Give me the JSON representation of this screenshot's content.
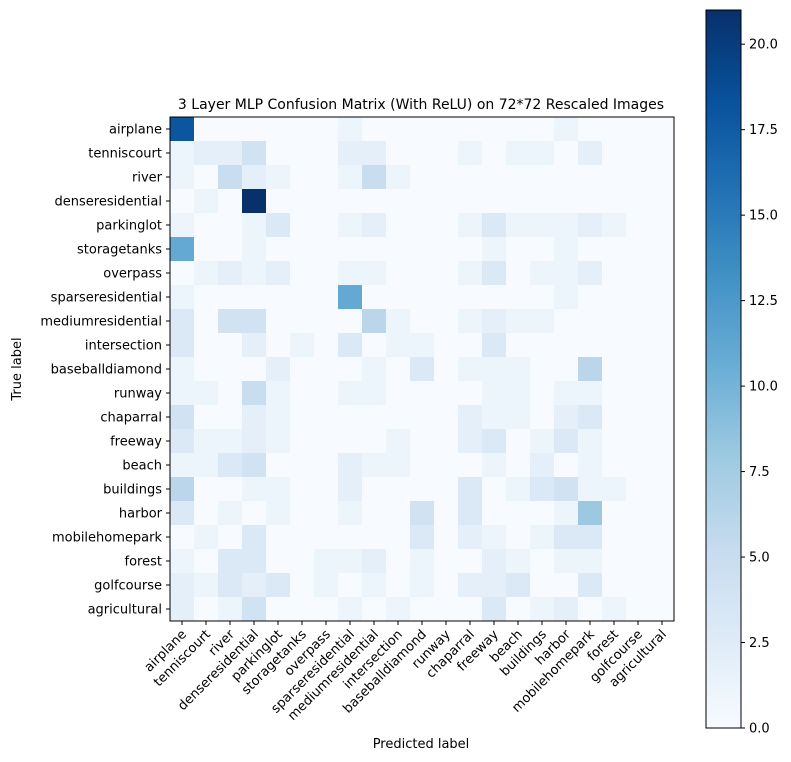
{
  "chart_data": {
    "type": "heatmap",
    "title": "3 Layer MLP Confusion Matrix (With ReLU) on 72*72 Rescaled Images",
    "xlabel": "Predicted label",
    "ylabel": "True label",
    "row_labels": [
      "airplane",
      "tenniscourt",
      "river",
      "denseresidential",
      "parkinglot",
      "storagetanks",
      "overpass",
      "sparseresidential",
      "mediumresidential",
      "intersection",
      "baseballdiamond",
      "runway",
      "chaparral",
      "freeway",
      "beach",
      "buildings",
      "harbor",
      "mobilehomepark",
      "forest",
      "golfcourse",
      "agricultural"
    ],
    "col_labels": [
      "airplane",
      "tenniscourt",
      "river",
      "denseresidential",
      "parkinglot",
      "storagetanks",
      "overpass",
      "sparseresidential",
      "mediumresidential",
      "intersection",
      "baseballdiamond",
      "runway",
      "chaparral",
      "freeway",
      "beach",
      "buildings",
      "harbor",
      "mobilehomepark",
      "forest",
      "golfcourse",
      "agricultural"
    ],
    "values": [
      [
        18,
        0,
        0,
        0,
        0,
        0,
        0,
        1,
        0,
        0,
        0,
        0,
        0,
        0,
        0,
        0,
        1,
        0,
        0,
        0,
        0
      ],
      [
        1,
        2,
        2,
        4,
        0,
        0,
        0,
        2,
        2,
        0,
        0,
        0,
        1,
        0,
        1,
        1,
        0,
        2,
        0,
        0,
        0
      ],
      [
        1,
        0,
        5,
        2,
        1,
        0,
        0,
        1,
        5,
        1,
        0,
        0,
        0,
        0,
        0,
        0,
        0,
        0,
        0,
        0,
        0
      ],
      [
        0,
        1,
        0,
        21,
        0,
        0,
        0,
        0,
        0,
        0,
        0,
        0,
        0,
        0,
        0,
        0,
        0,
        0,
        0,
        0,
        0
      ],
      [
        1,
        0,
        0,
        1,
        3,
        0,
        0,
        1,
        2,
        0,
        0,
        0,
        1,
        3,
        1,
        1,
        1,
        2,
        1,
        0,
        0
      ],
      [
        11,
        0,
        0,
        1,
        0,
        0,
        0,
        0,
        0,
        0,
        0,
        0,
        0,
        1,
        0,
        0,
        1,
        0,
        0,
        0,
        0
      ],
      [
        0,
        1,
        2,
        1,
        2,
        0,
        0,
        1,
        1,
        0,
        0,
        0,
        1,
        3,
        0,
        1,
        1,
        2,
        0,
        0,
        0
      ],
      [
        1,
        0,
        0,
        0,
        0,
        0,
        0,
        11,
        0,
        0,
        0,
        0,
        0,
        0,
        0,
        0,
        1,
        0,
        0,
        0,
        0
      ],
      [
        3,
        0,
        4,
        4,
        0,
        0,
        0,
        0,
        6,
        1,
        0,
        0,
        1,
        2,
        1,
        1,
        0,
        0,
        0,
        0,
        0
      ],
      [
        3,
        0,
        0,
        2,
        0,
        1,
        0,
        3,
        0,
        1,
        1,
        0,
        0,
        3,
        0,
        0,
        0,
        0,
        0,
        0,
        0
      ],
      [
        1,
        0,
        0,
        0,
        2,
        0,
        0,
        0,
        1,
        0,
        3,
        0,
        1,
        1,
        1,
        0,
        0,
        6,
        0,
        0,
        0
      ],
      [
        1,
        1,
        0,
        5,
        1,
        0,
        0,
        1,
        1,
        0,
        0,
        0,
        0,
        1,
        1,
        0,
        1,
        1,
        0,
        0,
        0
      ],
      [
        4,
        0,
        0,
        2,
        1,
        0,
        0,
        0,
        0,
        0,
        0,
        0,
        2,
        1,
        1,
        0,
        2,
        3,
        0,
        0,
        0
      ],
      [
        3,
        1,
        1,
        2,
        1,
        0,
        0,
        0,
        0,
        1,
        0,
        0,
        2,
        3,
        0,
        1,
        3,
        1,
        0,
        0,
        0
      ],
      [
        1,
        1,
        3,
        4,
        0,
        0,
        0,
        2,
        1,
        1,
        0,
        0,
        0,
        1,
        0,
        2,
        0,
        1,
        0,
        0,
        0
      ],
      [
        6,
        0,
        0,
        1,
        1,
        0,
        0,
        2,
        0,
        0,
        0,
        0,
        3,
        0,
        1,
        3,
        4,
        1,
        1,
        0,
        0
      ],
      [
        3,
        0,
        1,
        0,
        1,
        0,
        0,
        1,
        0,
        0,
        4,
        0,
        3,
        0,
        0,
        0,
        1,
        8,
        0,
        0,
        0
      ],
      [
        0,
        1,
        0,
        3,
        0,
        0,
        0,
        0,
        0,
        0,
        3,
        0,
        2,
        1,
        0,
        1,
        3,
        3,
        0,
        0,
        0
      ],
      [
        1,
        0,
        3,
        3,
        0,
        0,
        1,
        1,
        2,
        0,
        1,
        0,
        0,
        2,
        1,
        0,
        1,
        1,
        0,
        0,
        0
      ],
      [
        2,
        1,
        3,
        2,
        3,
        0,
        1,
        0,
        1,
        0,
        1,
        0,
        2,
        2,
        3,
        0,
        0,
        3,
        0,
        0,
        0
      ],
      [
        2,
        0,
        1,
        4,
        0,
        0,
        0,
        1,
        0,
        1,
        0,
        0,
        0,
        3,
        0,
        1,
        2,
        0,
        1,
        0,
        0
      ]
    ],
    "vmin": 0,
    "vmax": 21,
    "colorbar_ticks": [
      "0.0",
      "2.5",
      "5.0",
      "7.5",
      "10.0",
      "12.5",
      "15.0",
      "17.5",
      "20.0"
    ],
    "colormap": [
      "#f7fbff",
      "#deebf7",
      "#c6dbef",
      "#9ecae1",
      "#6baed6",
      "#4292c6",
      "#2171b5",
      "#08519c",
      "#08306b"
    ]
  }
}
